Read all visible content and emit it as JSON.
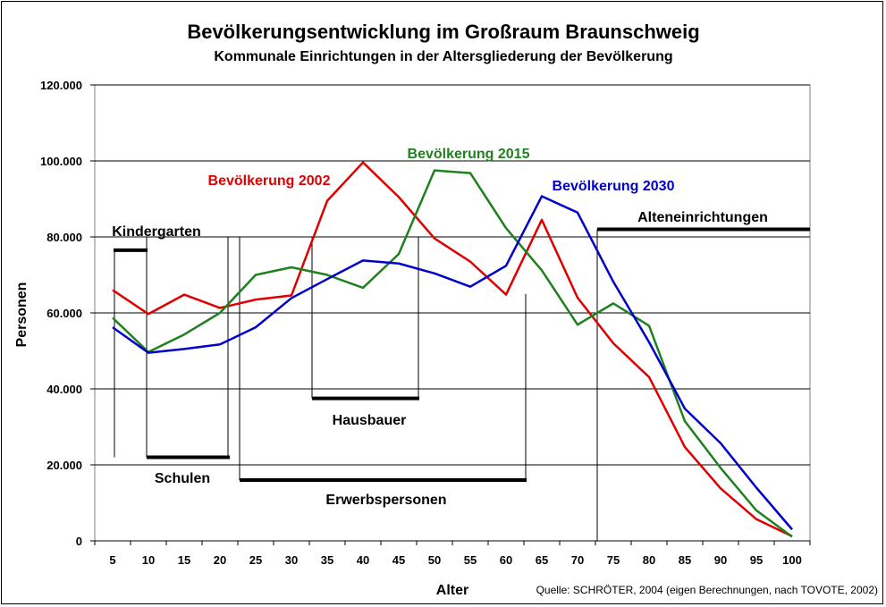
{
  "chart_data": {
    "type": "line",
    "title": "Bevölkerungsentwicklung im Großraum Braunschweig",
    "subtitle": "Kommunale Einrichtungen in der Altersgliederung der Bevölkerung",
    "xlabel": "Alter",
    "ylabel": "Personen",
    "source": "Quelle: SCHRÖTER, 2004 (eigen Berechnungen, nach TOVOTE, 2002)",
    "x": [
      5,
      10,
      15,
      20,
      25,
      30,
      35,
      40,
      45,
      50,
      55,
      60,
      65,
      70,
      75,
      80,
      85,
      90,
      95,
      100
    ],
    "x_tick_labels": [
      "5",
      "10",
      "15",
      "20",
      "25",
      "30",
      "35",
      "40",
      "45",
      "50",
      "55",
      "60",
      "65",
      "70",
      "75",
      "80",
      "85",
      "90",
      "95",
      "100"
    ],
    "ylim": [
      0,
      120000
    ],
    "y_ticks": [
      0,
      20000,
      40000,
      60000,
      80000,
      100000,
      120000
    ],
    "y_tick_labels": [
      "0",
      "20.000",
      "40.000",
      "60.000",
      "80.000",
      "100.000",
      "120.000"
    ],
    "grid": "horizontal",
    "series": [
      {
        "name": "Bevölkerung 2002",
        "color": "#e00000",
        "values": [
          66000,
          59700,
          64800,
          61300,
          63500,
          64600,
          89500,
          99600,
          90500,
          79600,
          73500,
          64800,
          84500,
          64000,
          52000,
          43100,
          24700,
          13800,
          5700,
          1200
        ]
      },
      {
        "name": "Bevölkerung 2015",
        "color": "#208020",
        "values": [
          58700,
          49700,
          54300,
          60000,
          70000,
          72000,
          70000,
          66600,
          75500,
          97500,
          96800,
          82300,
          71200,
          56900,
          62500,
          56600,
          31500,
          19200,
          8000,
          1100
        ]
      },
      {
        "name": "Bevölkerung 2030",
        "color": "#0000cc",
        "values": [
          56200,
          49500,
          50500,
          51700,
          56200,
          63900,
          68900,
          73800,
          73000,
          70400,
          66900,
          72400,
          90700,
          86400,
          68200,
          52300,
          34800,
          25700,
          14000,
          3000
        ]
      }
    ],
    "annotations": [
      {
        "label": "Kindergarten",
        "from": 5,
        "to": 10,
        "level": 76500
      },
      {
        "label": "Schulen",
        "from": 10,
        "to": 21,
        "level": 22000
      },
      {
        "label": "Hausbauer",
        "from": 34,
        "to": 49,
        "level": 37500
      },
      {
        "label": "Erwerbspersonen",
        "from": 22,
        "to": 65,
        "level": 16000
      },
      {
        "label": "Alteneinrichtungen",
        "from": 72,
        "to": 102,
        "level": 82000
      }
    ]
  }
}
